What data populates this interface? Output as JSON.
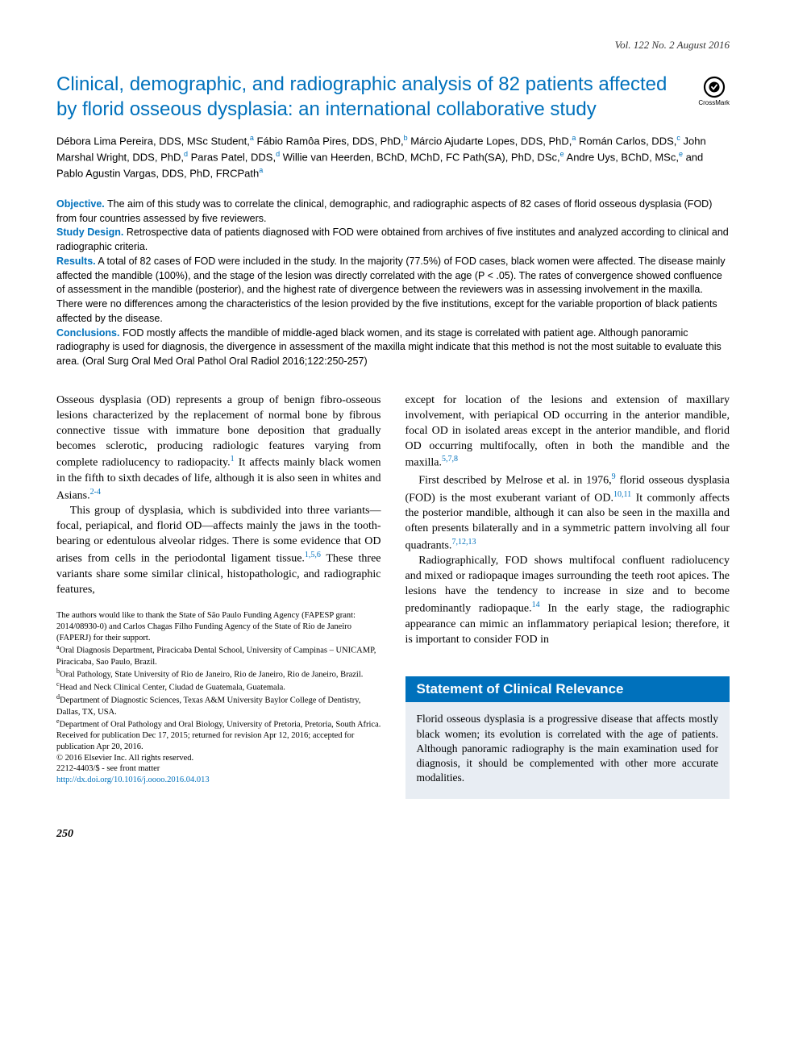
{
  "issue": "Vol. 122 No. 2 August 2016",
  "title": "Clinical, demographic, and radiographic analysis of 82 patients affected by florid osseous dysplasia: an international collaborative study",
  "crossmark_label": "CrossMark",
  "authors_html": "Débora Lima Pereira, DDS, MSc Student,<sup class='sup-a'>a</sup> Fábio Ramôa Pires, DDS, PhD,<sup class='sup-b'>b</sup> Márcio Ajudarte Lopes, DDS, PhD,<sup class='sup-a'>a</sup> Román Carlos, DDS,<sup class='sup-c'>c</sup> John Marshal Wright, DDS, PhD,<sup class='sup-d'>d</sup> Paras Patel, DDS,<sup class='sup-d'>d</sup> Willie van Heerden, BChD, MChD, FC Path(SA), PhD, DSc,<sup class='sup-e'>e</sup> Andre Uys, BChD, MSc,<sup class='sup-e'>e</sup> and Pablo Agustin Vargas, DDS, PhD, FRCPath<sup class='sup-a'>a</sup>",
  "abstract": {
    "objective": {
      "head": "Objective.",
      "text": " The aim of this study was to correlate the clinical, demographic, and radiographic aspects of 82 cases of florid osseous dysplasia (FOD) from four countries assessed by five reviewers."
    },
    "design": {
      "head": "Study Design.",
      "text": " Retrospective data of patients diagnosed with FOD were obtained from archives of five institutes and analyzed according to clinical and radiographic criteria."
    },
    "results": {
      "head": "Results.",
      "text": " A total of 82 cases of FOD were included in the study. In the majority (77.5%) of FOD cases, black women were affected. The disease mainly affected the mandible (100%), and the stage of the lesion was directly correlated with the age (P < .05). The rates of convergence showed confluence of assessment in the mandible (posterior), and the highest rate of divergence between the reviewers was in assessing involvement in the maxilla. There were no differences among the characteristics of the lesion provided by the five institutions, except for the variable proportion of black patients affected by the disease."
    },
    "conclusions": {
      "head": "Conclusions.",
      "text": " FOD mostly affects the mandible of middle-aged black women, and its stage is correlated with patient age. Although panoramic radiography is used for diagnosis, the divergence in assessment of the maxilla might indicate that this method is not the most suitable to evaluate this area. (Oral Surg Oral Med Oral Pathol Oral Radiol 2016;122:250-257)"
    }
  },
  "body": {
    "col1": {
      "p1": "Osseous dysplasia (OD) represents a group of benign fibro-osseous lesions characterized by the replacement of normal bone by fibrous connective tissue with immature bone deposition that gradually becomes sclerotic, producing radiologic features varying from complete radiolucency to radiopacity.",
      "r1": "1",
      "p1b": " It affects mainly black women in the fifth to sixth decades of life, although it is also seen in whites and Asians.",
      "r2": "2-4",
      "p2": "This group of dysplasia, which is subdivided into three variants—focal, periapical, and florid OD—affects mainly the jaws in the tooth-bearing or edentulous alveolar ridges. There is some evidence that OD arises from cells in the periodontal ligament tissue.",
      "r3": "1,5,6",
      "p2b": " These three variants share some similar clinical, histopathologic, and radiographic features,"
    },
    "col2": {
      "p1": "except for location of the lesions and extension of maxillary involvement, with periapical OD occurring in the anterior mandible, focal OD in isolated areas except in the anterior mandible, and florid OD occurring multifocally, often in both the mandible and the maxilla.",
      "r1": "5,7,8",
      "p2a": "First described by Melrose et al. in 1976,",
      "r2": "9",
      "p2b": " florid osseous dysplasia (FOD) is the most exuberant variant of OD.",
      "r3": "10,11",
      "p2c": " It commonly affects the posterior mandible, although it can also be seen in the maxilla and often presents bilaterally and in a symmetric pattern involving all four quadrants.",
      "r4": "7,12,13",
      "p3a": "Radiographically, FOD shows multifocal confluent radiolucency and mixed or radiopaque images surrounding the teeth root apices. The lesions have the tendency to increase in size and to become predominantly radiopaque.",
      "r5": "14",
      "p3b": " In the early stage, the radiographic appearance can mimic an inflammatory periapical lesion; therefore, it is important to consider FOD in"
    }
  },
  "footnotes": {
    "funding": "The authors would like to thank the State of São Paulo Funding Agency (FAPESP grant: 2014/08930-0) and Carlos Chagas Filho Funding Agency of the State of Rio de Janeiro (FAPERJ) for their support.",
    "affil": {
      "a": "Oral Diagnosis Department, Piracicaba Dental School, University of Campinas – UNICAMP, Piracicaba, Sao Paulo, Brazil.",
      "b": "Oral Pathology, State University of Rio de Janeiro, Rio de Janeiro, Rio de Janeiro, Brazil.",
      "c": "Head and Neck Clinical Center, Ciudad de Guatemala, Guatemala.",
      "d": "Department of Diagnostic Sciences, Texas A&M University Baylor College of Dentistry, Dallas, TX, USA.",
      "e": "Department of Oral Pathology and Oral Biology, University of Pretoria, Pretoria, South Africa."
    },
    "received": "Received for publication Dec 17, 2015; returned for revision Apr 12, 2016; accepted for publication Apr 20, 2016.",
    "copyright": "© 2016 Elsevier Inc. All rights reserved.",
    "issn": "2212-4403/$ - see front matter",
    "doi": "http://dx.doi.org/10.1016/j.oooo.2016.04.013"
  },
  "relevance": {
    "heading": "Statement of Clinical Relevance",
    "text": "Florid osseous dysplasia is a progressive disease that affects mostly black women; its evolution is correlated with the age of patients. Although panoramic radiography is the main examination used for diagnosis, it should be complemented with other more accurate modalities."
  },
  "page_number": "250",
  "colors": {
    "accent": "#0071bc",
    "relevance_bg": "#e8edf3",
    "text": "#000000",
    "page_bg": "#ffffff"
  }
}
